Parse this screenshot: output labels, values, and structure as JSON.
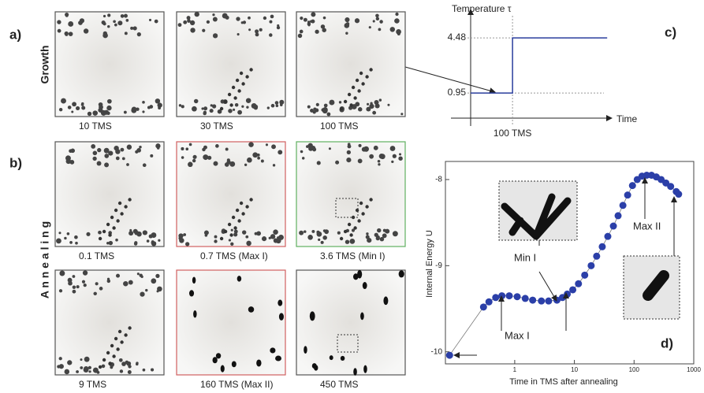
{
  "panel_labels": [
    "a)",
    "b)",
    "c)",
    "d)"
  ],
  "row_labels": [
    "Growth",
    "A n n e a l i n g"
  ],
  "thumbnails": [
    {
      "caption": "10 TMS"
    },
    {
      "caption": "30 TMS"
    },
    {
      "caption": "100 TMS"
    },
    {
      "caption": "0.1 TMS"
    },
    {
      "caption": "0.7 TMS (Max I)"
    },
    {
      "caption": "3.6 TMS (Min I)"
    },
    {
      "caption": "9 TMS"
    },
    {
      "caption": "160 TMS (Max II)"
    },
    {
      "caption": "450 TMS"
    }
  ],
  "chart_data": [
    {
      "type": "line",
      "ylabel": "Temperature τ",
      "xlabel": "Time",
      "color": "#2b3f9e",
      "x": [
        0,
        100,
        100,
        326
      ],
      "values": [
        0.95,
        0.95,
        4.48,
        4.48
      ],
      "xlim": [
        0,
        336
      ],
      "ylim": [
        -0.66,
        6.4
      ],
      "xticks": [
        {
          "value": 100,
          "label": "100 TMS"
        }
      ],
      "yticks": [
        0.95,
        4.48
      ],
      "grid": true
    },
    {
      "type": "scatter",
      "ylabel": "Internal Energy U",
      "xlabel": "Time in TMS after annealing",
      "color": "#2b3fa8",
      "log_x": true,
      "xlim": [
        0.069,
        1000
      ],
      "ylim": [
        -10.14,
        -7.79
      ],
      "xticks": [
        1,
        10,
        100,
        1000
      ],
      "yticks": [
        -8,
        -9,
        -10
      ],
      "annotations": [
        "Max I",
        "Min I",
        "Max II"
      ],
      "x": [
        0.081,
        0.3,
        0.37,
        0.48,
        0.61,
        0.81,
        1.1,
        1.5,
        2.0,
        2.8,
        3.7,
        5.1,
        6.3,
        7.6,
        9.4,
        11.7,
        14.9,
        19.1,
        23.6,
        29.3,
        36.3,
        45,
        54,
        65,
        78,
        94,
        113,
        136,
        163,
        196,
        236,
        284,
        341,
        410,
        509,
        558
      ],
      "values": [
        -10.04,
        -9.48,
        -9.42,
        -9.37,
        -9.35,
        -9.35,
        -9.36,
        -9.38,
        -9.4,
        -9.41,
        -9.41,
        -9.4,
        -9.37,
        -9.33,
        -9.28,
        -9.21,
        -9.11,
        -9.0,
        -8.89,
        -8.78,
        -8.66,
        -8.54,
        -8.42,
        -8.3,
        -8.18,
        -8.07,
        -8.0,
        -7.96,
        -7.95,
        -7.95,
        -7.97,
        -8.0,
        -8.04,
        -8.08,
        -8.14,
        -8.17
      ]
    }
  ]
}
